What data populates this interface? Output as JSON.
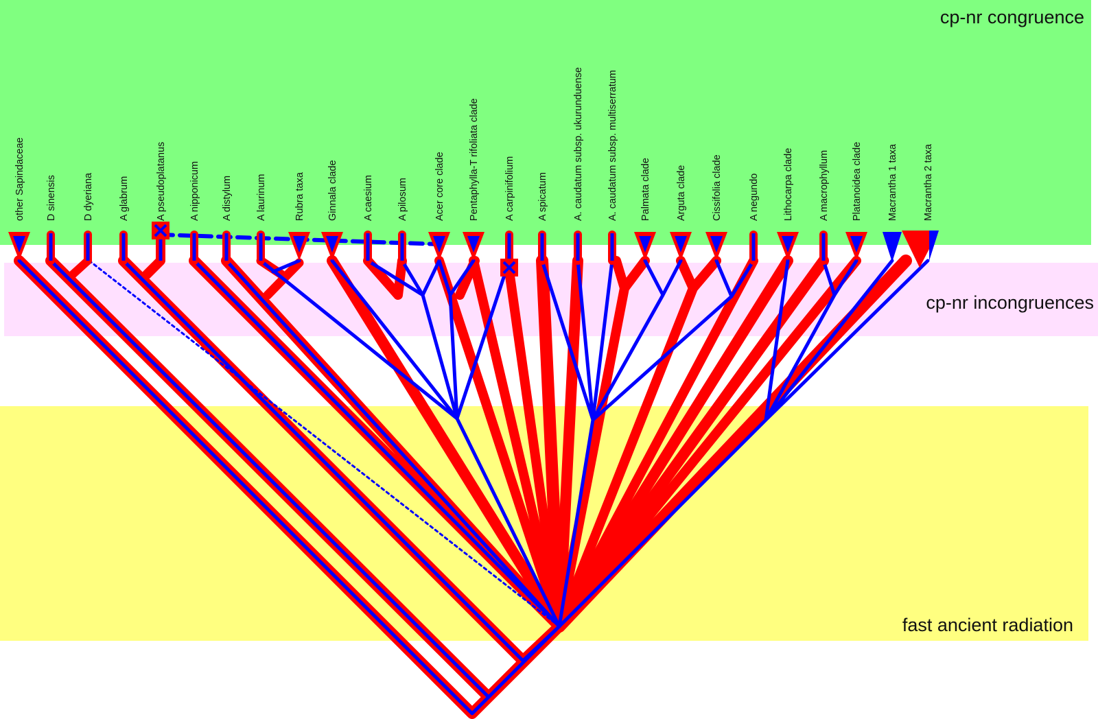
{
  "zones": {
    "congruence": {
      "label": "cp-nr congruence",
      "color": "#80ff80"
    },
    "incongruences": {
      "label": "cp-nr incongruences",
      "color": "#ffe0ff"
    },
    "radiation": {
      "label": "fast ancient radiation",
      "color": "#ffff80"
    }
  },
  "colors": {
    "cp_tree": "#ff0000",
    "nr_tree": "#0000ff"
  },
  "taxa": [
    {
      "label": "other Sapindaceae",
      "tip": "triangle"
    },
    {
      "label": "D sinensis",
      "tip": "line"
    },
    {
      "label": "D dyeriana",
      "tip": "line"
    },
    {
      "label": "A glabrum",
      "tip": "line"
    },
    {
      "label": "A pseudoplatanus",
      "tip": "cross"
    },
    {
      "label": "A nipponicum",
      "tip": "line"
    },
    {
      "label": "A distylum",
      "tip": "line"
    },
    {
      "label": "A laurinum",
      "tip": "line"
    },
    {
      "label": "Rubra  taxa",
      "tip": "triangle"
    },
    {
      "label": "Ginnala  clade",
      "tip": "triangle"
    },
    {
      "label": "A caesium",
      "tip": "line"
    },
    {
      "label": "A pilosum",
      "tip": "line"
    },
    {
      "label": "Acer  core clade",
      "tip": "triangle"
    },
    {
      "label": "Pentaphylla-T rifoliata clade",
      "tip": "triangle"
    },
    {
      "label": "A carpinifolium",
      "tip": "cross"
    },
    {
      "label": "A spicatum",
      "tip": "line"
    },
    {
      "label": "A. caudatum  subsp. ukurunduense",
      "tip": "line"
    },
    {
      "label": "A. caudatum  subsp. multiserratum",
      "tip": "line"
    },
    {
      "label": "Palmata  clade",
      "tip": "triangle"
    },
    {
      "label": "Arguta clade",
      "tip": "triangle"
    },
    {
      "label": "Cissifolia  clade",
      "tip": "triangle"
    },
    {
      "label": "A negundo",
      "tip": "line"
    },
    {
      "label": "Lithocarpa  clade",
      "tip": "triangle"
    },
    {
      "label": "A macrophyllum",
      "tip": "line"
    },
    {
      "label": "Platanoidea  clade",
      "tip": "triangle"
    },
    {
      "label": "Macrantha  1 taxa",
      "tip": "blue-triangle"
    },
    {
      "label": "Macrantha  2 taxa",
      "tip": "red-triangle"
    }
  ]
}
